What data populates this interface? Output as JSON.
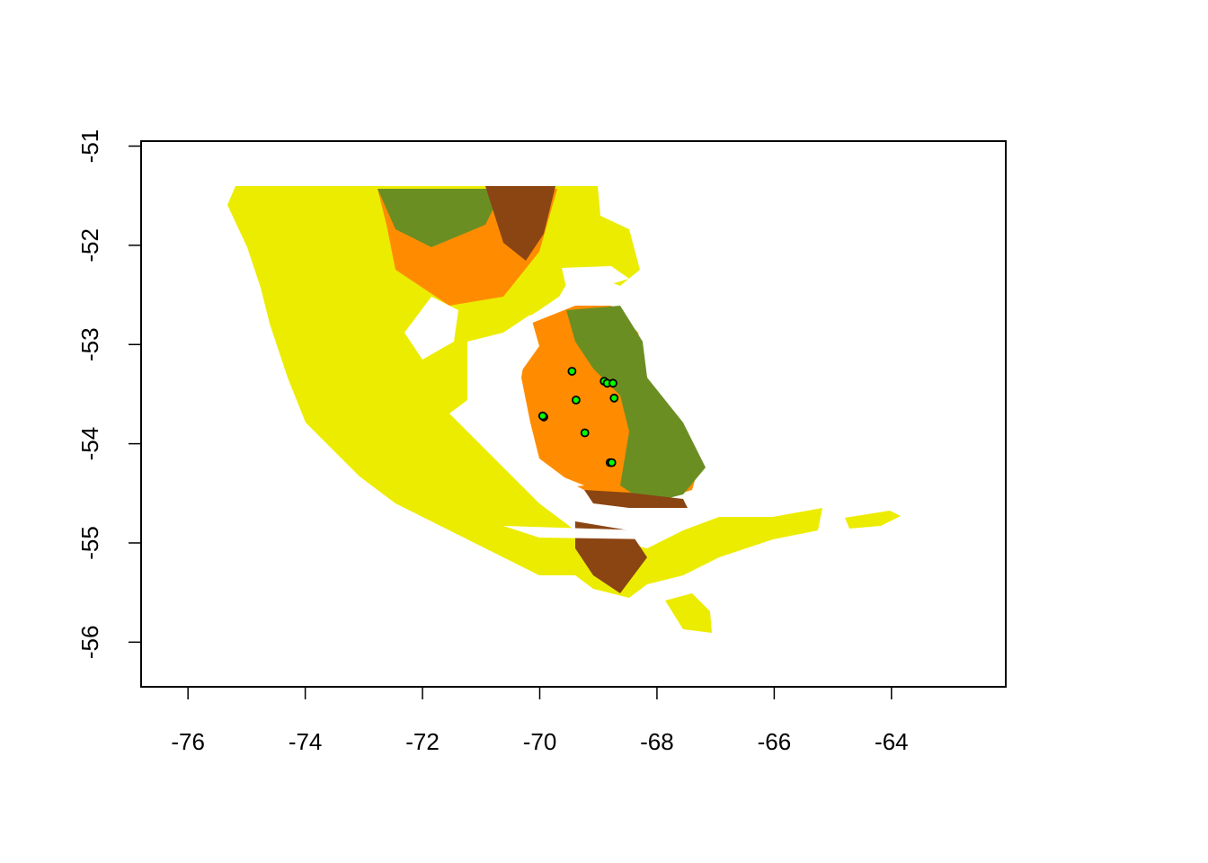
{
  "chart_data": {
    "type": "scatter",
    "title": "",
    "xlabel": "",
    "ylabel": "",
    "xlim": [
      -76.8,
      -62.05
    ],
    "ylim": [
      -56.45,
      -50.95
    ],
    "x_ticks": [
      -76,
      -74,
      -72,
      -70,
      -68,
      -66,
      -64
    ],
    "y_ticks": [
      -51,
      -52,
      -53,
      -54,
      -55,
      -56
    ],
    "x_tick_labels": [
      "-76",
      "-74",
      "-72",
      "-70",
      "-68",
      "-66",
      "-64"
    ],
    "y_tick_labels": [
      "-51",
      "-52",
      "-53",
      "-54",
      "-55",
      "-56"
    ],
    "grid": false,
    "raster_background": {
      "description_colors": {
        "water": "#ffffff",
        "low": "#ecec00",
        "mid": "#ff8c00",
        "green": "#6b8e23",
        "high": "#8b4513"
      }
    },
    "series": [
      {
        "marker_fill": "#00ff00",
        "marker_stroke": "#000000",
        "points": [
          {
            "x": -69.45,
            "y": -53.27
          },
          {
            "x": -68.9,
            "y": -53.37
          },
          {
            "x": -68.85,
            "y": -53.39
          },
          {
            "x": -68.75,
            "y": -53.39
          },
          {
            "x": -69.38,
            "y": -53.56
          },
          {
            "x": -68.73,
            "y": -53.54
          },
          {
            "x": -69.93,
            "y": -53.73
          },
          {
            "x": -69.95,
            "y": -53.72
          },
          {
            "x": -69.23,
            "y": -53.89
          },
          {
            "x": -68.8,
            "y": -54.19
          },
          {
            "x": -68.77,
            "y": -54.19
          }
        ]
      }
    ]
  }
}
